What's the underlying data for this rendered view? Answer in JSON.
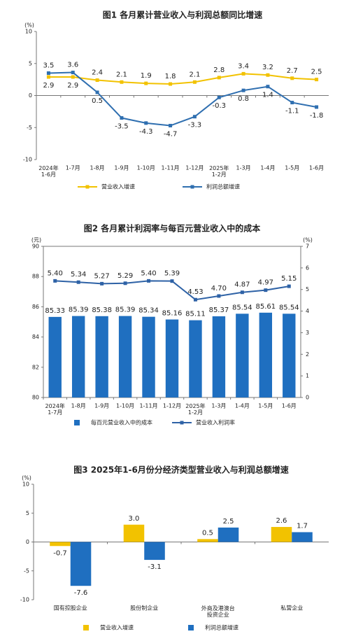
{
  "chart_data": [
    {
      "type": "line",
      "title": "图1 各月累计营业收入与利润总额同比增速",
      "ylabel": "(%)",
      "categories": [
        "2024年\n1-6月",
        "1-7月",
        "1-8月",
        "1-9月",
        "1-10月",
        "1-11月",
        "1-12月",
        "2025年\n1-2月",
        "1-3月",
        "1-4月",
        "1-5月",
        "1-6月"
      ],
      "series": [
        {
          "name": "营业收入增速",
          "color": "#f2c200",
          "values": [
            2.9,
            2.9,
            2.4,
            2.1,
            1.9,
            1.8,
            2.1,
            2.8,
            3.4,
            3.2,
            2.7,
            2.5
          ]
        },
        {
          "name": "利润总额增速",
          "color": "#2f6fb0",
          "values": [
            3.5,
            3.6,
            0.5,
            -3.5,
            -4.3,
            -4.7,
            -3.3,
            -0.3,
            0.8,
            1.4,
            -1.1,
            -1.8
          ]
        }
      ],
      "ylim": [
        -10,
        10
      ],
      "yticks": [
        -10,
        -5,
        0,
        5,
        10
      ],
      "grid": false,
      "legend": "bottom"
    },
    {
      "type": "bar",
      "title": "图2 各月累计利润率与每百元营业收入中的成本",
      "ylabel": "(元)",
      "y2label": "(%)",
      "categories": [
        "2024年\n1-7月",
        "1-8月",
        "1-9月",
        "1-10月",
        "1-11月",
        "1-12月",
        "2025年\n1-2月",
        "1-3月",
        "1-4月",
        "1-5月",
        "1-6月"
      ],
      "series": [
        {
          "name": "每百元营业收入中的成本",
          "type": "bar",
          "color": "#1f6fc0",
          "values": [
            85.33,
            85.39,
            85.38,
            85.39,
            85.34,
            85.16,
            85.11,
            85.37,
            85.54,
            85.61,
            85.54
          ],
          "value_labels": [
            "85.33",
            "85.39",
            "85.38",
            "85.39",
            "85.34",
            "85.16",
            "85.11",
            "85.37",
            "85.54",
            "85.61",
            "85.54"
          ]
        },
        {
          "name": "营业收入利润率",
          "type": "line",
          "axis": "y2",
          "color": "#2e62a6",
          "values": [
            5.4,
            5.34,
            5.27,
            5.29,
            5.4,
            5.39,
            4.53,
            4.7,
            4.87,
            4.97,
            5.15
          ],
          "value_labels": [
            "5.40",
            "5.34",
            "5.27",
            "5.29",
            "5.40",
            "5.39",
            "4.53",
            "4.70",
            "4.87",
            "4.97",
            "5.15"
          ]
        }
      ],
      "ylim": [
        80,
        90
      ],
      "yticks": [
        80,
        82,
        84,
        86,
        88,
        90
      ],
      "y2lim": [
        0,
        7
      ],
      "y2ticks": [
        0,
        1,
        2,
        3,
        4,
        5,
        6,
        7
      ],
      "grid": false,
      "legend": "bottom"
    },
    {
      "type": "bar",
      "title": "图3 2025年1-6月份分经济类型营业收入与利润总额增速",
      "ylabel": "(%)",
      "categories": [
        "国有控股企业",
        "股份制企业",
        "外商及港澳台\n投资企业",
        "私营企业"
      ],
      "series": [
        {
          "name": "营业收入增速",
          "color": "#f2c200",
          "values": [
            -0.7,
            3.0,
            0.5,
            2.6
          ],
          "value_labels": [
            "-0.7",
            "3.0",
            "0.5",
            "2.6"
          ]
        },
        {
          "name": "利润总额增速",
          "color": "#1f6fc0",
          "values": [
            -7.6,
            -3.1,
            2.5,
            1.7
          ],
          "value_labels": [
            "-7.6",
            "-3.1",
            "2.5",
            "1.7"
          ]
        }
      ],
      "ylim": [
        -10,
        10
      ],
      "yticks": [
        -10,
        -5,
        0,
        5,
        10
      ],
      "grid": false,
      "legend": "bottom"
    }
  ]
}
